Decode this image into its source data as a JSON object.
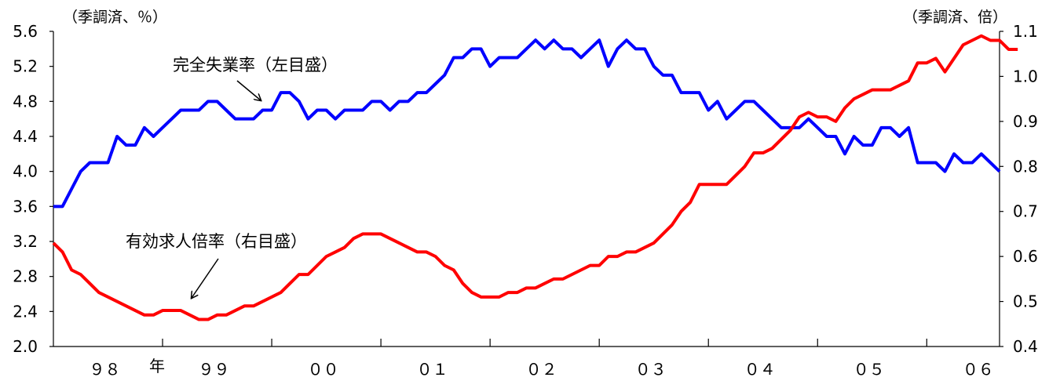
{
  "chart_data": {
    "type": "line",
    "left_unit": "（季調済、％）",
    "right_unit": "（季調済、倍）",
    "year_suffix": "年",
    "x_labels": [
      "９８",
      "９９",
      "００",
      "０１",
      "０２",
      "０３",
      "０４",
      "０５",
      "０６"
    ],
    "left_axis": {
      "ylim": [
        2.0,
        5.6
      ],
      "ticks": [
        "2.0",
        "2.4",
        "2.8",
        "3.2",
        "3.6",
        "4.0",
        "4.4",
        "4.8",
        "5.2",
        "5.6"
      ]
    },
    "right_axis": {
      "ylim": [
        0.4,
        1.1
      ],
      "ticks": [
        "0.4",
        "0.5",
        "0.6",
        "0.7",
        "0.8",
        "0.9",
        "1.0",
        "1.1"
      ]
    },
    "series": [
      {
        "name": "完全失業率（左目盛）",
        "axis": "left",
        "color": "#0000ff",
        "start": "1998-01",
        "values": [
          3.6,
          3.6,
          3.8,
          4.0,
          4.1,
          4.1,
          4.1,
          4.4,
          4.3,
          4.3,
          4.5,
          4.4,
          4.5,
          4.6,
          4.7,
          4.7,
          4.7,
          4.8,
          4.8,
          4.7,
          4.6,
          4.6,
          4.6,
          4.7,
          4.7,
          4.9,
          4.9,
          4.8,
          4.6,
          4.7,
          4.7,
          4.6,
          4.7,
          4.7,
          4.7,
          4.8,
          4.8,
          4.7,
          4.8,
          4.8,
          4.9,
          4.9,
          5.0,
          5.1,
          5.3,
          5.3,
          5.4,
          5.4,
          5.2,
          5.3,
          5.3,
          5.3,
          5.4,
          5.5,
          5.4,
          5.5,
          5.4,
          5.4,
          5.3,
          5.4,
          5.5,
          5.2,
          5.4,
          5.5,
          5.4,
          5.4,
          5.2,
          5.1,
          5.1,
          4.9,
          4.9,
          4.9,
          4.7,
          4.8,
          4.6,
          4.7,
          4.8,
          4.8,
          4.7,
          4.6,
          4.5,
          4.5,
          4.5,
          4.6,
          4.5,
          4.4,
          4.4,
          4.2,
          4.4,
          4.3,
          4.3,
          4.5,
          4.5,
          4.4,
          4.5,
          4.1,
          4.1,
          4.1,
          4.0,
          4.2,
          4.1,
          4.1,
          4.2,
          4.1,
          4.0
        ]
      },
      {
        "name": "有効求人倍率（右目盛）",
        "axis": "right",
        "color": "#ff0000",
        "start": "1998-01",
        "values": [
          0.63,
          0.61,
          0.57,
          0.56,
          0.54,
          0.52,
          0.51,
          0.5,
          0.49,
          0.48,
          0.47,
          0.47,
          0.48,
          0.48,
          0.48,
          0.47,
          0.46,
          0.46,
          0.47,
          0.47,
          0.48,
          0.49,
          0.49,
          0.5,
          0.51,
          0.52,
          0.54,
          0.56,
          0.56,
          0.58,
          0.6,
          0.61,
          0.62,
          0.64,
          0.65,
          0.65,
          0.65,
          0.64,
          0.63,
          0.62,
          0.61,
          0.61,
          0.6,
          0.58,
          0.57,
          0.54,
          0.52,
          0.51,
          0.51,
          0.51,
          0.52,
          0.52,
          0.53,
          0.53,
          0.54,
          0.55,
          0.55,
          0.56,
          0.57,
          0.58,
          0.58,
          0.6,
          0.6,
          0.61,
          0.61,
          0.62,
          0.63,
          0.65,
          0.67,
          0.7,
          0.72,
          0.76,
          0.76,
          0.76,
          0.76,
          0.78,
          0.8,
          0.83,
          0.83,
          0.84,
          0.86,
          0.88,
          0.91,
          0.92,
          0.91,
          0.91,
          0.9,
          0.93,
          0.95,
          0.96,
          0.97,
          0.97,
          0.97,
          0.98,
          0.99,
          1.03,
          1.03,
          1.04,
          1.01,
          1.04,
          1.07,
          1.08,
          1.09,
          1.08,
          1.08,
          1.06,
          1.06
        ]
      }
    ]
  }
}
